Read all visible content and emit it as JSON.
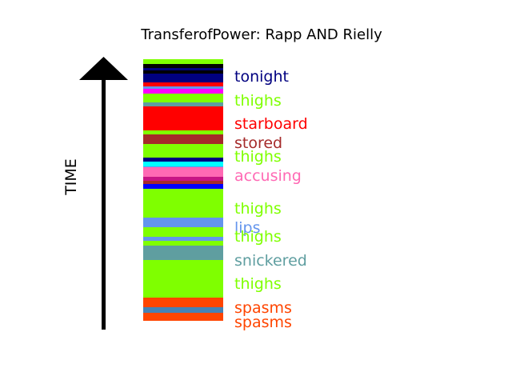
{
  "chart_data": {
    "type": "bar",
    "title": "TransferofPower: Rapp AND Rielly",
    "ylabel": "TIME",
    "segments": [
      {
        "color": "#7fff00",
        "h": 6
      },
      {
        "color": "#000000",
        "h": 5
      },
      {
        "color": "#000080",
        "h": 3
      },
      {
        "color": "#000000",
        "h": 4
      },
      {
        "color": "#000080",
        "h": 11
      },
      {
        "color": "#ff0000",
        "h": 5
      },
      {
        "color": "#6495ed",
        "h": 3
      },
      {
        "color": "#ff00ff",
        "h": 6
      },
      {
        "color": "#7fff00",
        "h": 11
      },
      {
        "color": "#5f9ea0",
        "h": 5
      },
      {
        "color": "#ff0000",
        "h": 30
      },
      {
        "color": "#7fff00",
        "h": 5
      },
      {
        "color": "#a52a2a",
        "h": 12
      },
      {
        "color": "#7fff00",
        "h": 17
      },
      {
        "color": "#000080",
        "h": 5
      },
      {
        "color": "#00ffff",
        "h": 6
      },
      {
        "color": "#6495ed",
        "h": 1
      },
      {
        "color": "#ff69b4",
        "h": 12
      },
      {
        "color": "#c71585",
        "h": 5
      },
      {
        "color": "#a52a2a",
        "h": 4
      },
      {
        "color": "#0000ff",
        "h": 6
      },
      {
        "color": "#7fff00",
        "h": 36
      },
      {
        "color": "#6495ed",
        "h": 12
      },
      {
        "color": "#7fff00",
        "h": 12
      },
      {
        "color": "#6495ed",
        "h": 5
      },
      {
        "color": "#7fff00",
        "h": 6
      },
      {
        "color": "#5f9ea0",
        "h": 18
      },
      {
        "color": "#7fff00",
        "h": 47
      },
      {
        "color": "#ff4500",
        "h": 12
      },
      {
        "color": "#4682b4",
        "h": 7
      },
      {
        "color": "#ff4500",
        "h": 10
      }
    ],
    "labels": [
      {
        "text": "tonight",
        "color": "#000080",
        "pos": 21
      },
      {
        "text": "thighs",
        "color": "#7fff00",
        "pos": 51
      },
      {
        "text": "starboard",
        "color": "#ff0000",
        "pos": 80
      },
      {
        "text": "stored",
        "color": "#a52a2a",
        "pos": 104
      },
      {
        "text": "thighs",
        "color": "#7fff00",
        "pos": 121
      },
      {
        "text": "accusing",
        "color": "#ff69b4",
        "pos": 145
      },
      {
        "text": "thighs",
        "color": "#7fff00",
        "pos": 186
      },
      {
        "text": "lips",
        "color": "#6495ed",
        "pos": 210
      },
      {
        "text": "thighs",
        "color": "#7fff00",
        "pos": 221
      },
      {
        "text": "snickered",
        "color": "#5f9ea0",
        "pos": 251
      },
      {
        "text": "thighs",
        "color": "#7fff00",
        "pos": 280
      },
      {
        "text": "spasms",
        "color": "#ff4500",
        "pos": 310
      },
      {
        "text": "spasms",
        "color": "#ff4500",
        "pos": 328
      }
    ]
  }
}
